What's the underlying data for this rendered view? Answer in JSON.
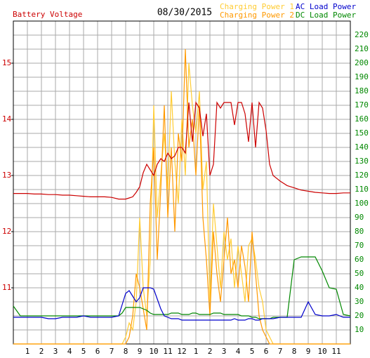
{
  "chart_data": {
    "type": "line",
    "title": "08/30/2015",
    "y_label": "Battery Voltage",
    "x": [
      0,
      0.5,
      1,
      1.5,
      2,
      2.5,
      3,
      3.5,
      4,
      4.5,
      5,
      5.5,
      6,
      6.5,
      7,
      7.5,
      7.75,
      8,
      8.25,
      8.5,
      8.75,
      9,
      9.25,
      9.5,
      9.75,
      10,
      10.25,
      10.5,
      10.75,
      11,
      11.25,
      11.5,
      11.75,
      12,
      12.25,
      12.5,
      12.75,
      13,
      13.25,
      13.5,
      13.75,
      14,
      14.25,
      14.5,
      14.75,
      15,
      15.25,
      15.5,
      15.75,
      16,
      16.25,
      16.5,
      16.75,
      17,
      17.25,
      17.5,
      17.75,
      18,
      18.25,
      18.5,
      19,
      19.5,
      20,
      20.5,
      21,
      21.5,
      22,
      22.5,
      23,
      23.5,
      24
    ],
    "series": [
      {
        "name": "Battery Voltage",
        "color": "#cc0000",
        "axis": "y",
        "values": [
          12.68,
          12.68,
          12.68,
          12.67,
          12.67,
          12.66,
          12.66,
          12.65,
          12.65,
          12.64,
          12.63,
          12.62,
          12.62,
          12.62,
          12.61,
          12.58,
          12.58,
          12.58,
          12.6,
          12.62,
          12.7,
          12.8,
          13.05,
          13.2,
          13.1,
          13.0,
          13.2,
          13.3,
          13.25,
          13.4,
          13.3,
          13.35,
          13.5,
          13.5,
          13.4,
          14.3,
          13.6,
          14.3,
          14.2,
          13.7,
          14.1,
          13.0,
          13.2,
          14.3,
          14.2,
          14.3,
          14.3,
          14.3,
          13.9,
          14.3,
          14.3,
          14.1,
          13.6,
          14.3,
          13.5,
          14.3,
          14.2,
          13.8,
          13.2,
          13.0,
          12.9,
          12.82,
          12.78,
          12.74,
          12.72,
          12.7,
          12.69,
          12.68,
          12.68,
          12.69,
          12.69
        ]
      },
      {
        "name": "Charging Power 1",
        "color": "#ffcc33",
        "axis": "y2",
        "values": [
          0,
          0,
          0,
          0,
          0,
          0,
          0,
          0,
          0,
          0,
          0,
          0,
          0,
          0,
          0,
          0,
          0,
          5,
          15,
          10,
          30,
          90,
          40,
          20,
          60,
          170,
          90,
          120,
          150,
          110,
          180,
          130,
          100,
          160,
          120,
          200,
          170,
          150,
          180,
          110,
          130,
          30,
          100,
          70,
          40,
          80,
          60,
          75,
          40,
          70,
          50,
          30,
          70,
          75,
          60,
          40,
          30,
          10,
          5,
          0,
          0,
          0,
          0,
          0,
          0,
          0,
          0,
          0,
          0,
          0,
          0
        ]
      },
      {
        "name": "Charging Power 2",
        "color": "#ff9900",
        "axis": "y2",
        "values": [
          0,
          0,
          0,
          0,
          0,
          0,
          0,
          0,
          0,
          0,
          0,
          0,
          0,
          0,
          0,
          0,
          0,
          0,
          5,
          20,
          50,
          40,
          25,
          10,
          100,
          140,
          60,
          110,
          170,
          90,
          140,
          80,
          150,
          130,
          210,
          140,
          160,
          120,
          170,
          90,
          60,
          20,
          80,
          50,
          30,
          60,
          90,
          50,
          60,
          40,
          70,
          55,
          30,
          80,
          50,
          20,
          10,
          5,
          0,
          0,
          0,
          0,
          0,
          0,
          0,
          0,
          0,
          0,
          0,
          0,
          0
        ]
      },
      {
        "name": "AC Load Power",
        "color": "#0000cc",
        "axis": "y2",
        "values": [
          19,
          19,
          19,
          19,
          19,
          18,
          18,
          19,
          19,
          19,
          20,
          19,
          19,
          19,
          19,
          20,
          28,
          36,
          38,
          34,
          30,
          33,
          40,
          40,
          40,
          39,
          32,
          25,
          20,
          19,
          18,
          18,
          18,
          17,
          17,
          17,
          17,
          17,
          17,
          17,
          17,
          17,
          17,
          17,
          17,
          17,
          17,
          17,
          18,
          17,
          17,
          17,
          18,
          18,
          17,
          17,
          18,
          18,
          18,
          18,
          19,
          19,
          19,
          19,
          30,
          21,
          20,
          20,
          21,
          19,
          19
        ]
      },
      {
        "name": "DC Load Power",
        "color": "#008800",
        "axis": "y2",
        "values": [
          27,
          20,
          20,
          20,
          20,
          20,
          20,
          20,
          20,
          20,
          20,
          20,
          20,
          20,
          20,
          20,
          22,
          26,
          26,
          26,
          26,
          26,
          25,
          24,
          22,
          21,
          21,
          21,
          21,
          21,
          22,
          22,
          22,
          21,
          21,
          21,
          22,
          22,
          21,
          21,
          21,
          21,
          22,
          22,
          22,
          21,
          21,
          21,
          21,
          21,
          20,
          20,
          20,
          19,
          19,
          18,
          18,
          18,
          18,
          19,
          19,
          19,
          60,
          62,
          62,
          62,
          52,
          40,
          39,
          21,
          20
        ]
      }
    ],
    "xlim": [
      0,
      24
    ],
    "xticks": [
      1,
      2,
      3,
      4,
      5,
      6,
      7,
      8,
      9,
      10,
      11,
      12,
      {
        "value": 13,
        "label": "1"
      },
      {
        "value": 14,
        "label": "2"
      },
      {
        "value": 15,
        "label": "3"
      },
      {
        "value": 16,
        "label": "4"
      },
      {
        "value": 17,
        "label": "5"
      },
      {
        "value": 18,
        "label": "6"
      },
      {
        "value": 19,
        "label": "7"
      },
      {
        "value": 20,
        "label": "8"
      },
      {
        "value": 21,
        "label": "9"
      },
      {
        "value": 22,
        "label": "10"
      },
      {
        "value": 23,
        "label": "11"
      }
    ],
    "ylim": [
      10,
      15.75
    ],
    "yticks": [
      11,
      12,
      13,
      14,
      15
    ],
    "y2lim": [
      0,
      230
    ],
    "y2ticks": [
      10,
      20,
      30,
      40,
      50,
      60,
      70,
      80,
      90,
      100,
      110,
      120,
      130,
      140,
      150,
      160,
      170,
      180,
      190,
      200,
      210,
      220
    ],
    "grid": true
  }
}
